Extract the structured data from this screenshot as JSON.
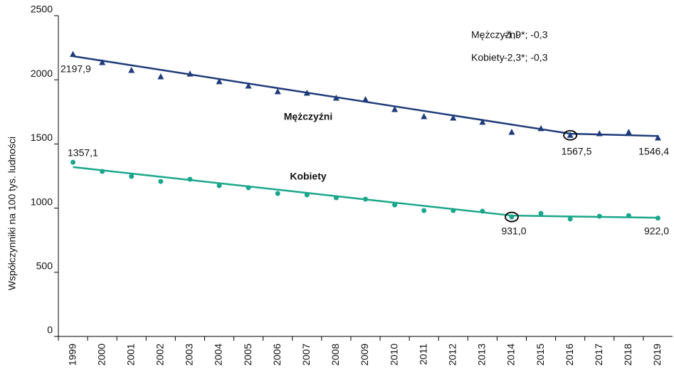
{
  "chart_data": {
    "type": "scatter",
    "y_label": "Współczynniki na 100 tys. ludności",
    "categories": [
      "1999",
      "2000",
      "2001",
      "2002",
      "2003",
      "2004",
      "2005",
      "2006",
      "2007",
      "2008",
      "2009",
      "2010",
      "2011",
      "2012",
      "2013",
      "2014",
      "2015",
      "2016",
      "2017",
      "2018",
      "2019"
    ],
    "ylim": [
      0,
      2500
    ],
    "yticks": [
      0,
      500,
      1000,
      1500,
      2000,
      2500
    ],
    "annotations": [
      {
        "label": "Mężczyźni",
        "text": "-1,9*; -0,3"
      },
      {
        "label": "Kobiety",
        "text": "-2,3*; -0,3"
      }
    ],
    "series": [
      {
        "name": "Mężczyźni",
        "color": "#1f3c7a",
        "marker": "triangle",
        "values": [
          2197.9,
          2134,
          2073,
          2023,
          2045,
          1985,
          1951,
          1907,
          1896,
          1857,
          1846,
          1768,
          1713,
          1702,
          1669,
          1591,
          1619,
          1567.5,
          1580,
          1591,
          1546.4
        ],
        "value_labels": [
          "2197,9",
          null,
          null,
          null,
          null,
          null,
          null,
          null,
          null,
          null,
          null,
          null,
          null,
          null,
          null,
          null,
          null,
          "1567,5",
          null,
          null,
          "1546,4"
        ],
        "trend": {
          "categories": [
            "1999",
            "2016",
            "2019"
          ],
          "values": [
            2184,
            1580,
            1562
          ]
        }
      },
      {
        "name": "Kobiety",
        "color": "#1aa68c",
        "marker": "circle",
        "values": [
          1357.1,
          1286,
          1247,
          1208,
          1225,
          1175,
          1159,
          1114,
          1103,
          1081,
          1070,
          1025,
          981,
          981,
          976,
          931.0,
          959,
          915,
          937,
          942,
          922.0
        ],
        "value_labels": [
          "1357,1",
          null,
          null,
          null,
          null,
          null,
          null,
          null,
          null,
          null,
          null,
          null,
          null,
          null,
          null,
          "931,0",
          null,
          null,
          null,
          null,
          "922,0"
        ],
        "trend": {
          "categories": [
            "1999",
            "2014",
            "2019"
          ],
          "values": [
            1320,
            942,
            925
          ]
        }
      }
    ]
  }
}
